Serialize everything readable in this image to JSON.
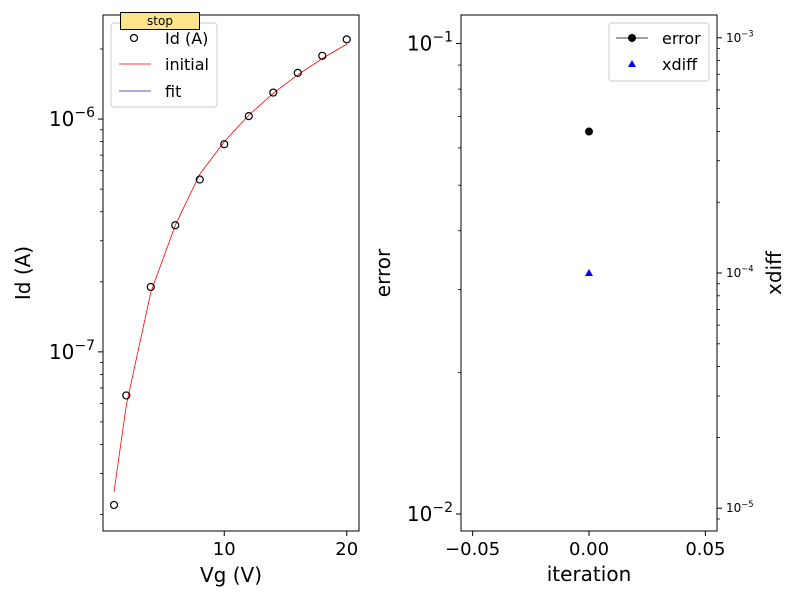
{
  "chart_data": [
    {
      "type": "scatter",
      "xlabel": "Vg (V)",
      "ylabel": "Id (A)",
      "yscale": "log",
      "xlim": [
        0.1,
        21.0
      ],
      "ylim": [
        1.7e-08,
        2.8e-06
      ],
      "xticks": [
        10,
        20
      ],
      "yticks": [
        {
          "value": 1e-07,
          "base": "10",
          "exp": "−7"
        },
        {
          "value": 1e-06,
          "base": "10",
          "exp": "−6"
        }
      ],
      "legend": {
        "position": "top-left",
        "entries": [
          "Id (A)",
          "initial",
          "fit"
        ]
      },
      "series": [
        {
          "name": "Id (A)",
          "kind": "open-circle-markers",
          "color": "#000000",
          "x": [
            1,
            2,
            4,
            6,
            8,
            10,
            12,
            14,
            16,
            18,
            20
          ],
          "y": [
            2.2e-08,
            6.5e-08,
            1.9e-07,
            3.5e-07,
            5.5e-07,
            7.8e-07,
            1.03e-06,
            1.3e-06,
            1.58e-06,
            1.87e-06,
            2.2e-06
          ]
        },
        {
          "name": "initial",
          "kind": "line",
          "color": "#ff0000",
          "x": [
            1,
            2,
            4,
            6,
            8,
            10,
            12,
            14,
            16,
            18,
            20
          ],
          "y": [
            2.5e-08,
            5.9e-08,
            1.8e-07,
            3.5e-07,
            5.8e-07,
            8e-07,
            1.04e-06,
            1.29e-06,
            1.55e-06,
            1.82e-06,
            2.1e-06
          ]
        },
        {
          "name": "fit",
          "kind": "line",
          "color": "#1f1fbf",
          "x": [],
          "y": []
        }
      ]
    },
    {
      "type": "scatter",
      "xlabel": "iteration",
      "ylabel": "error",
      "y2label": "xdiff",
      "yscale": "log",
      "y2scale": "log",
      "xlim": [
        -0.055,
        0.055
      ],
      "ylim": [
        0.0092,
        0.115
      ],
      "y2lim": [
        8e-06,
        0.00125
      ],
      "xticks": [
        {
          "value": -0.05,
          "label": "−0.05"
        },
        {
          "value": 0.0,
          "label": "0.00"
        },
        {
          "value": 0.05,
          "label": "0.05"
        }
      ],
      "yticks": [
        {
          "value": 0.01,
          "base": "10",
          "exp": "−2"
        },
        {
          "value": 0.1,
          "base": "10",
          "exp": "−1"
        }
      ],
      "y2ticks": [
        {
          "value": 1e-05,
          "base": "10",
          "exp": "−5"
        },
        {
          "value": 0.0001,
          "base": "10",
          "exp": "−4"
        },
        {
          "value": 0.001,
          "base": "10",
          "exp": "−3"
        }
      ],
      "legend": {
        "position": "top-right",
        "entries": [
          "error",
          "xdiff"
        ]
      },
      "series": [
        {
          "name": "error",
          "axis": "left",
          "kind": "line-circle",
          "color": "#000000",
          "x": [
            0
          ],
          "y": [
            0.065
          ]
        },
        {
          "name": "xdiff",
          "axis": "right",
          "kind": "triangle-markers",
          "color": "#0000ff",
          "x": [
            0
          ],
          "y": [
            0.0001
          ]
        }
      ]
    }
  ],
  "ui": {
    "stop_label": "stop"
  }
}
